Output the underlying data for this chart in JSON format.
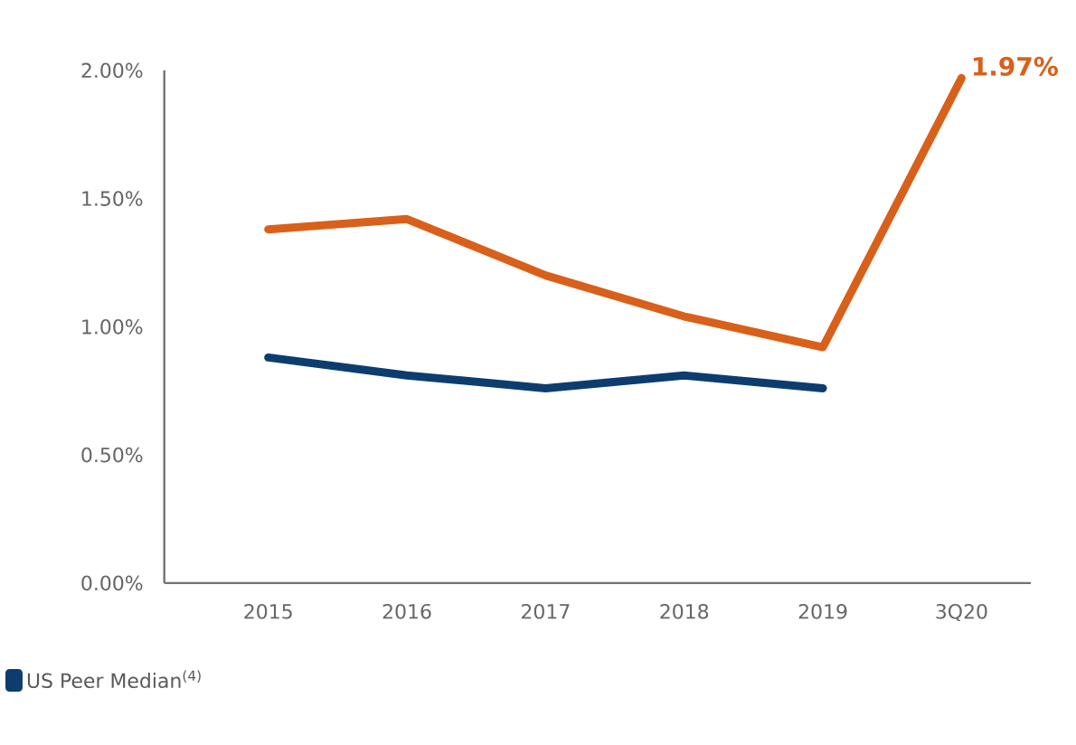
{
  "chart_data": {
    "type": "line",
    "categories": [
      "2015",
      "2016",
      "2017",
      "2018",
      "2019",
      "3Q20"
    ],
    "series": [
      {
        "color": "#d9601a",
        "values": [
          1.38,
          1.42,
          1.2,
          1.04,
          0.92,
          1.97
        ],
        "value_labels": [
          null,
          null,
          null,
          null,
          null,
          "1.97%"
        ]
      },
      {
        "name": "US Peer Median$^{(4)}$",
        "color": "#0d3d6e",
        "values": [
          0.88,
          0.81,
          0.76,
          0.81,
          0.76,
          null
        ]
      }
    ],
    "ylim": [
      0,
      2
    ],
    "yticks": [
      {
        "value": 0,
        "label": "0.00%"
      },
      {
        "value": 0.5,
        "label": "0.50%"
      },
      {
        "value": 1,
        "label": "1.00%"
      },
      {
        "value": 1.5,
        "label": "1.50%"
      },
      {
        "value": 2,
        "label": "2.00%"
      }
    ],
    "grid": false,
    "legend": "bottom left",
    "marker": "none",
    "line_style": "solid"
  }
}
